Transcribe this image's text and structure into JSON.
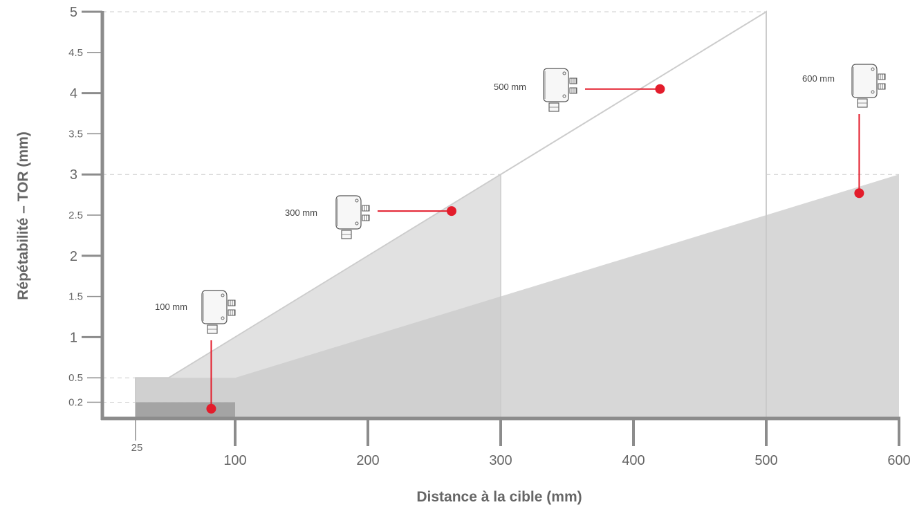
{
  "chart_data": {
    "type": "area",
    "xlabel": "Distance à la cible (mm)",
    "ylabel": "Répétabilité – TOR (mm)",
    "xlim": [
      0,
      600
    ],
    "ylim": [
      0,
      5
    ],
    "x_ticks": [
      25,
      100,
      200,
      300,
      400,
      500,
      600
    ],
    "x_tick_labels": [
      "25",
      "100",
      "200",
      "300",
      "400",
      "500",
      "600"
    ],
    "y_ticks": [
      0.2,
      0.5,
      1,
      1.5,
      2,
      2.5,
      3,
      3.5,
      4,
      4.5,
      5
    ],
    "y_tick_labels": [
      "0.2",
      "0.5",
      "1",
      "1.5",
      "2",
      "2.5",
      "3",
      "3.5",
      "4",
      "4.5",
      "5"
    ],
    "series": [
      {
        "name": "100 mm",
        "x": [
          25,
          100
        ],
        "y": [
          0.2,
          0.2
        ],
        "marker": {
          "x": 82,
          "y": 0.12
        }
      },
      {
        "name": "300 mm",
        "x": [
          25,
          50,
          300
        ],
        "y": [
          0.5,
          0.5,
          3.0
        ],
        "marker": {
          "x": 263,
          "y": 2.55
        }
      },
      {
        "name": "500 mm",
        "x": [
          25,
          50,
          500
        ],
        "y": [
          0.5,
          0.5,
          5.0
        ],
        "marker": {
          "x": 420,
          "y": 4.05
        }
      },
      {
        "name": "600 mm",
        "x": [
          25,
          100,
          600
        ],
        "y": [
          0.5,
          0.5,
          3.0
        ],
        "marker": {
          "x": 570,
          "y": 2.77
        }
      }
    ],
    "reference_lines_y": [
      0.2,
      0.5,
      3,
      5
    ],
    "grid": false,
    "legend": "none",
    "colors": {
      "axis": "#8c8c8c",
      "marker": "#e31c2b",
      "guide": "#cccccc",
      "fill_100": "#9e9e9e",
      "fill_300": "#dcdcdc",
      "fill_600": "#c9c9c9",
      "outline_500": "#cccccc"
    }
  }
}
